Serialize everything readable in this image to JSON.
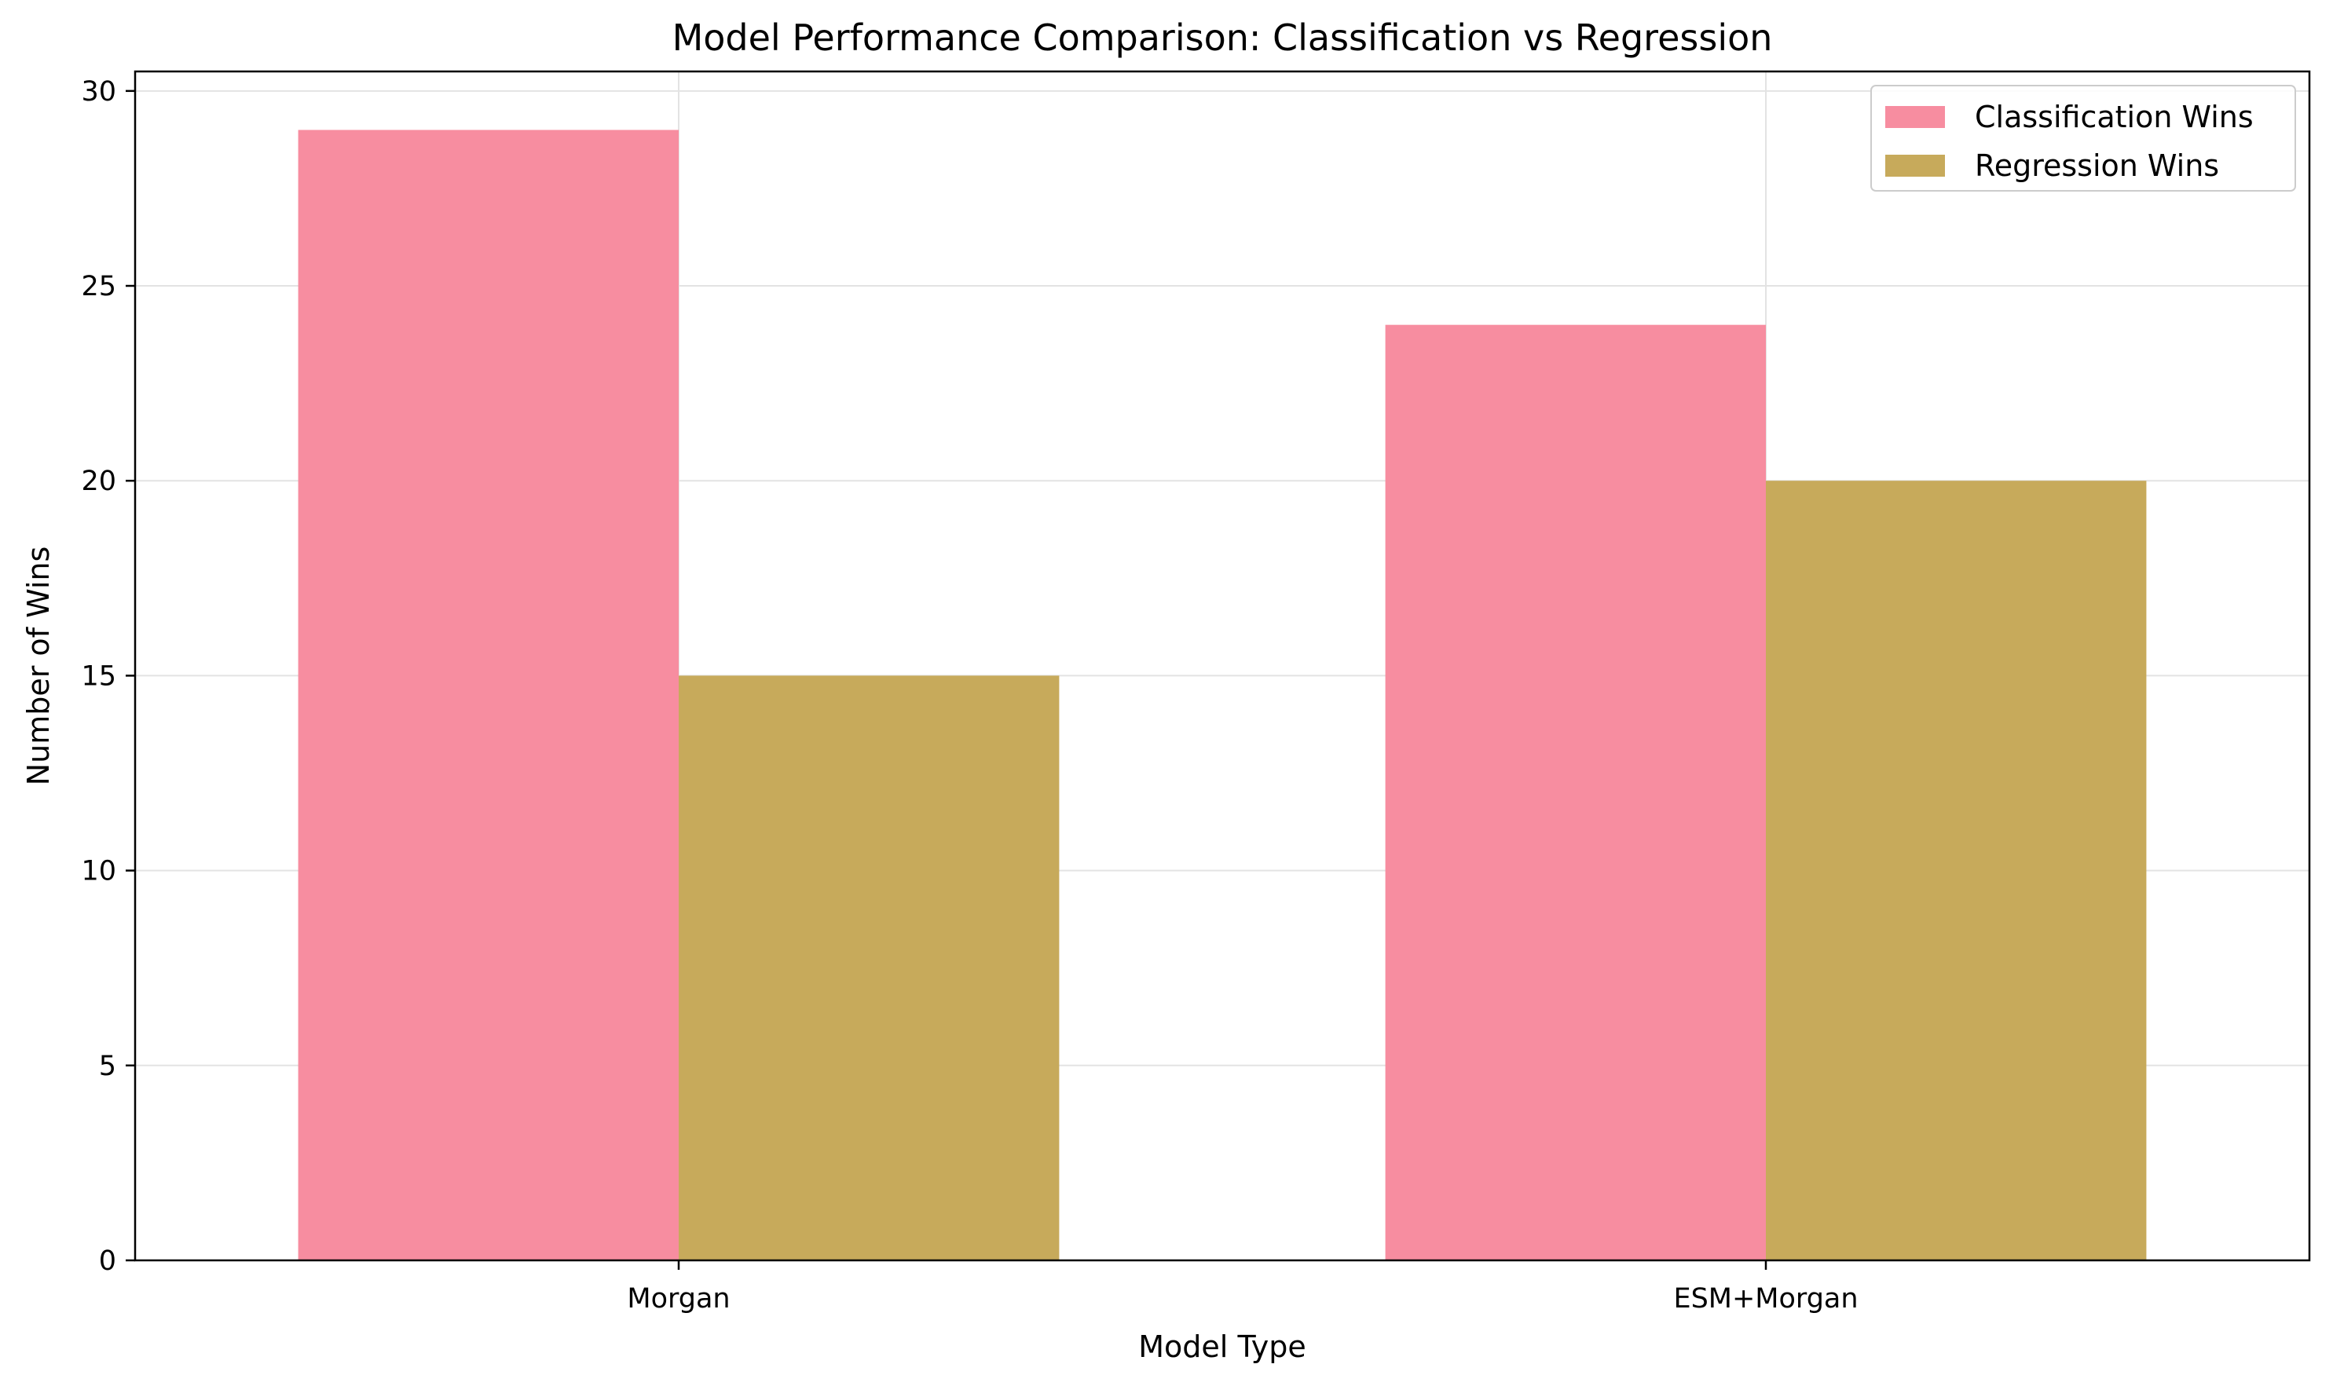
{
  "chart_data": {
    "type": "bar",
    "title": "Model Performance Comparison: Classification vs Regression",
    "xlabel": "Model Type",
    "ylabel": "Number of Wins",
    "categories": [
      "Morgan",
      "ESM+Morgan"
    ],
    "series": [
      {
        "name": "Classification Wins",
        "values": [
          29,
          24
        ],
        "color": "#f78da0"
      },
      {
        "name": "Regression Wins",
        "values": [
          15,
          20
        ],
        "color": "#c7aa5b"
      }
    ],
    "ylim": [
      0,
      30.5
    ],
    "yticks": [
      0,
      5,
      10,
      15,
      20,
      25,
      30
    ],
    "grid": true,
    "legend_position": "top-right"
  }
}
